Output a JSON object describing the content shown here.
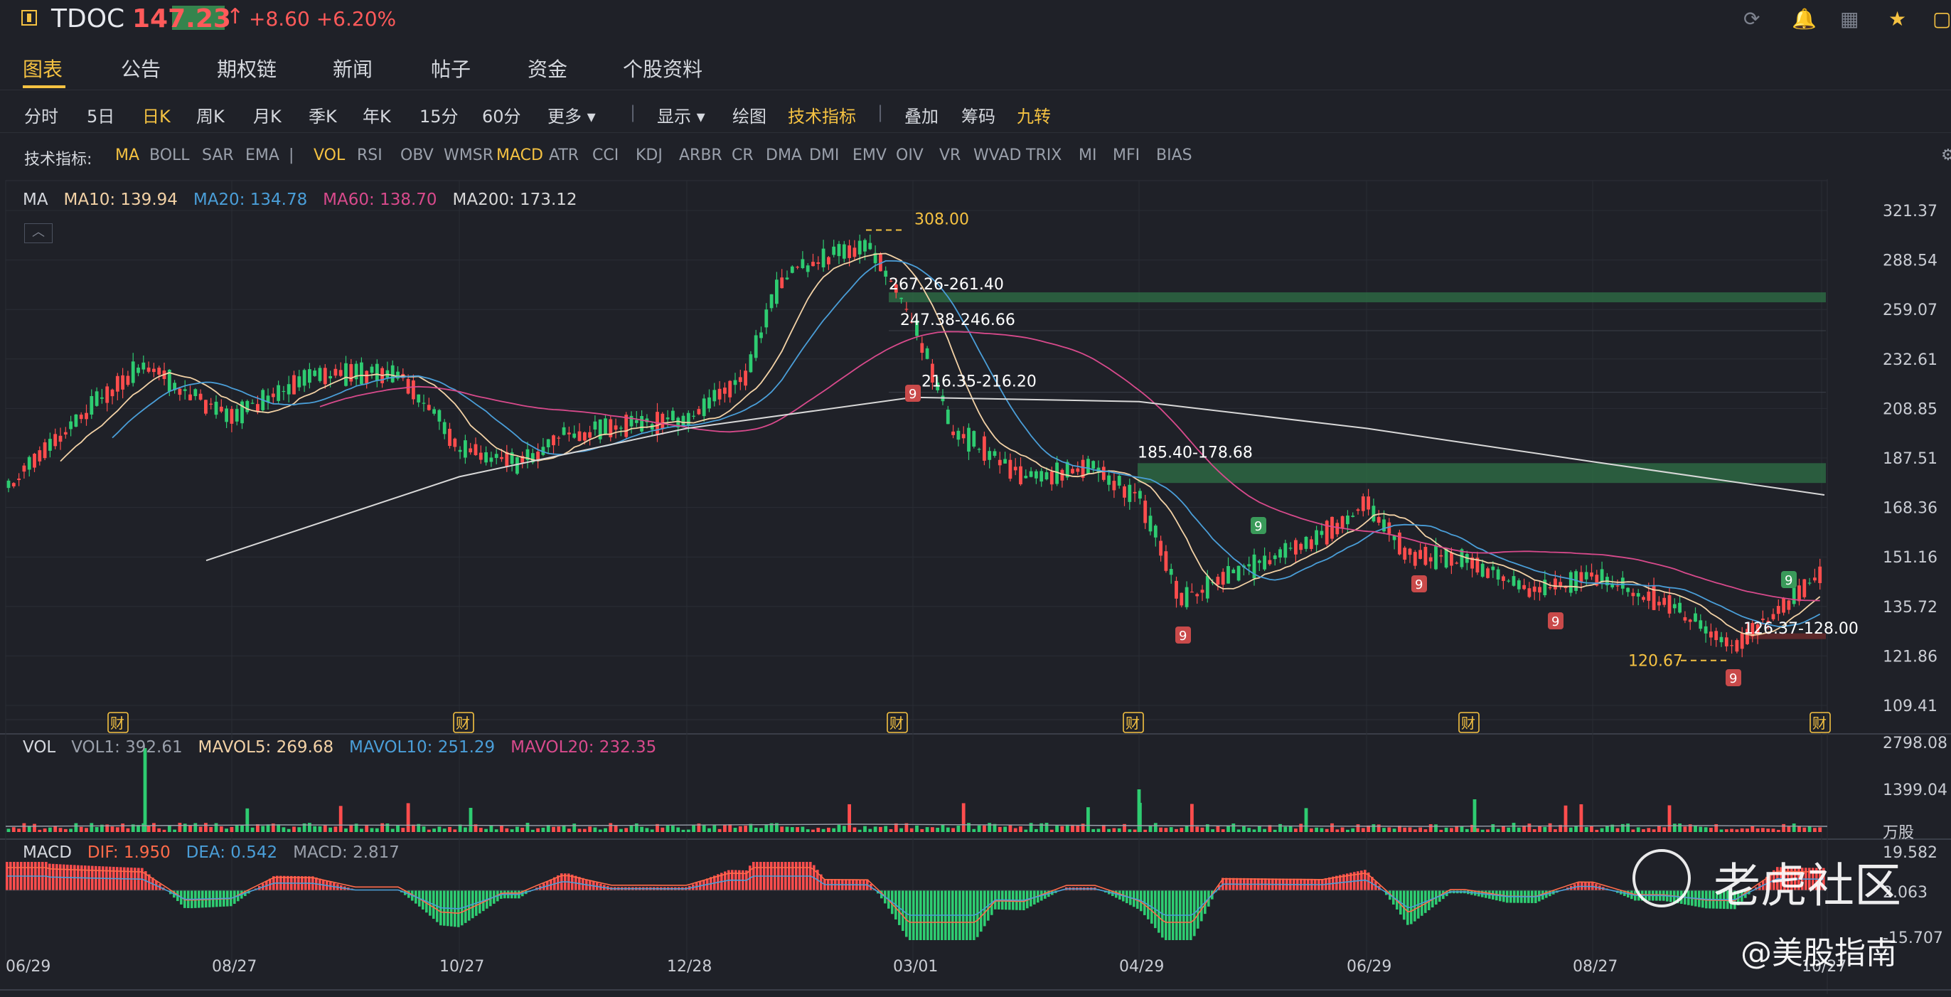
{
  "header": {
    "symbol": "TDOC",
    "price": "147.23",
    "change": "+8.60",
    "change_pct": "+6.20%",
    "icons": [
      "refresh-icon",
      "bell-icon",
      "grid-icon",
      "star-icon",
      "window-icon"
    ]
  },
  "tabs": [
    "图表",
    "公告",
    "期权链",
    "新闻",
    "帖子",
    "资金",
    "个股资料"
  ],
  "active_tab": "图表",
  "toolbar": {
    "periods": [
      "分时",
      "5日",
      "日K",
      "周K",
      "月K",
      "季K",
      "年K",
      "15分",
      "60分",
      "更多"
    ],
    "active_period": "日K",
    "tools": [
      "显示",
      "绘图",
      "技术指标"
    ],
    "extra": [
      "叠加",
      "筹码",
      "九转"
    ]
  },
  "indicators": {
    "label": "技术指标:",
    "items": [
      "MA",
      "BOLL",
      "SAR",
      "EMA",
      "|",
      "VOL",
      "RSI",
      "OBV",
      "WMSR",
      "MACD",
      "ATR",
      "CCI",
      "KDJ",
      "ARBR",
      "CR",
      "DMA",
      "DMI",
      "EMV",
      "OIV",
      "VR",
      "WVAD",
      "TRIX",
      "MI",
      "MFI",
      "BIAS"
    ],
    "active": [
      "MA",
      "VOL",
      "MACD"
    ]
  },
  "colors": {
    "up": "#ff4d4d",
    "down": "#2ecc71",
    "ma10": "#f3d2a6",
    "ma20": "#4a9ed8",
    "ma60": "#d84a8c",
    "ma200": "#d8d8d8",
    "accent": "#f5c242"
  },
  "ma_legend": {
    "title": "MA",
    "ma10": "MA10: 139.94",
    "ma20": "MA20: 134.78",
    "ma60": "MA60: 138.70",
    "ma200": "MA200: 173.12"
  },
  "vol_legend": {
    "title": "VOL",
    "vol1": "VOL1: 392.61",
    "mavol5": "MAVOL5: 269.68",
    "mavol10": "MAVOL10: 251.29",
    "mavol20": "MAVOL20: 232.35"
  },
  "macd_legend": {
    "title": "MACD",
    "dif": "DIF: 1.950",
    "dea": "DEA: 0.542",
    "macd": "MACD: 2.817"
  },
  "watermark": {
    "brand": "老虎社区",
    "handle": "@美股指南"
  },
  "chart_data": {
    "type": "candlestick",
    "x_ticks": [
      "06/29",
      "08/27",
      "10/27",
      "12/28",
      "03/01",
      "04/29",
      "06/29",
      "08/27",
      "10/27"
    ],
    "price_ticks": [
      "321.37",
      "288.54",
      "259.07",
      "232.61",
      "208.85",
      "187.51",
      "168.36",
      "151.16",
      "135.72",
      "121.86",
      "109.41"
    ],
    "volume_ticks": [
      "2798.08",
      "1399.04"
    ],
    "volume_unit": "万股",
    "macd_ticks": [
      "19.582",
      "2.063",
      "-15.707"
    ],
    "price_annotations": [
      {
        "label": "308.00",
        "price": 308.0
      },
      {
        "label": "267.26-261.40",
        "price": 267.26
      },
      {
        "label": "247.38-246.66",
        "price": 247.38
      },
      {
        "label": "216.35-216.20",
        "price": 216.35
      },
      {
        "label": "185.40-178.68",
        "price": 185.4
      },
      {
        "label": "120.67",
        "price": 120.67
      },
      {
        "label": "126.37-128.00",
        "price": 126.37
      }
    ],
    "earnings_marker": "财",
    "td_marker": "9",
    "close_series": [
      {
        "x": "06/29",
        "close": 175
      },
      {
        "x": "07/20",
        "close": 230
      },
      {
        "x": "08/05",
        "close": 215
      },
      {
        "x": "08/27",
        "close": 205
      },
      {
        "x": "09/20",
        "close": 225
      },
      {
        "x": "10/12",
        "close": 226
      },
      {
        "x": "10/27",
        "close": 192
      },
      {
        "x": "11/12",
        "close": 185
      },
      {
        "x": "11/30",
        "close": 198
      },
      {
        "x": "12/28",
        "close": 204
      },
      {
        "x": "01/15",
        "close": 225
      },
      {
        "x": "02/01",
        "close": 278
      },
      {
        "x": "02/16",
        "close": 300
      },
      {
        "x": "03/01",
        "close": 252
      },
      {
        "x": "03/15",
        "close": 200
      },
      {
        "x": "03/31",
        "close": 180
      },
      {
        "x": "04/15",
        "close": 183
      },
      {
        "x": "04/29",
        "close": 172
      },
      {
        "x": "05/12",
        "close": 138
      },
      {
        "x": "05/28",
        "close": 150
      },
      {
        "x": "06/15",
        "close": 158
      },
      {
        "x": "06/29",
        "close": 170
      },
      {
        "x": "07/15",
        "close": 152
      },
      {
        "x": "07/30",
        "close": 150
      },
      {
        "x": "08/13",
        "close": 140
      },
      {
        "x": "08/27",
        "close": 145
      },
      {
        "x": "09/15",
        "close": 137
      },
      {
        "x": "10/01",
        "close": 124
      },
      {
        "x": "10/15",
        "close": 138
      },
      {
        "x": "10/27",
        "close": 147.23
      }
    ],
    "ma200_series": [
      {
        "x": "08/27",
        "close": 150
      },
      {
        "x": "10/27",
        "close": 180
      },
      {
        "x": "12/28",
        "close": 200
      },
      {
        "x": "03/01",
        "close": 214
      },
      {
        "x": "04/29",
        "close": 212
      },
      {
        "x": "06/29",
        "close": 200
      },
      {
        "x": "08/27",
        "close": 186
      },
      {
        "x": "10/27",
        "close": 173
      }
    ]
  }
}
